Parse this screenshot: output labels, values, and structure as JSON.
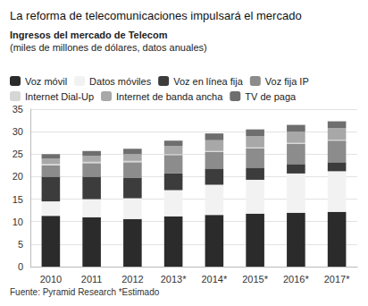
{
  "chart_data": {
    "type": "bar",
    "title": "La reforma de telecomunicaciones impulsará el mercado",
    "subtitle": [
      "Ingresos del mercado de Telecom",
      "(miles de millones de dólares, datos anuales)"
    ],
    "annotation": "Fuente: Pyramid Research *Estimado",
    "categories": [
      "2010",
      "2011",
      "2012",
      "2013*",
      "2014*",
      "2015*",
      "2016*",
      "2017*"
    ],
    "series": [
      {
        "name": "Voz móvil",
        "color": "#2b2b2b",
        "values": [
          11.3,
          11.0,
          10.6,
          11.2,
          11.5,
          11.8,
          12.0,
          12.2
        ]
      },
      {
        "name": "Datos móviles",
        "color": "#f2f2f2",
        "values": [
          3.2,
          4.0,
          4.6,
          5.8,
          6.7,
          7.5,
          8.7,
          9.0
        ]
      },
      {
        "name": "Voz en línea fija",
        "color": "#3c3c3c",
        "values": [
          5.5,
          5.0,
          4.6,
          3.7,
          3.6,
          2.7,
          2.1,
          2.0
        ]
      },
      {
        "name": "Voz fija IP",
        "color": "#8c8c8c",
        "values": [
          2.5,
          3.0,
          3.4,
          4.1,
          3.7,
          4.3,
          4.5,
          4.8
        ]
      },
      {
        "name": "Internet Dial-Up",
        "color": "#d6d6d6",
        "values": [
          0.3,
          0.3,
          0.3,
          0.2,
          0.2,
          0.2,
          0.2,
          0.2
        ]
      },
      {
        "name": "Internet de banda ancha",
        "color": "#a8a8a8",
        "values": [
          1.2,
          1.3,
          1.5,
          1.8,
          2.4,
          2.5,
          2.5,
          2.6
        ]
      },
      {
        "name": "TV de paga",
        "color": "#6e6e6e",
        "values": [
          1.0,
          1.1,
          1.2,
          1.2,
          1.5,
          1.5,
          1.5,
          1.5
        ]
      }
    ],
    "ylim": [
      0,
      35
    ],
    "yticks": [
      0,
      5,
      10,
      15,
      20,
      25,
      30,
      35
    ],
    "stacked": true,
    "grid": true,
    "legend": "top"
  }
}
